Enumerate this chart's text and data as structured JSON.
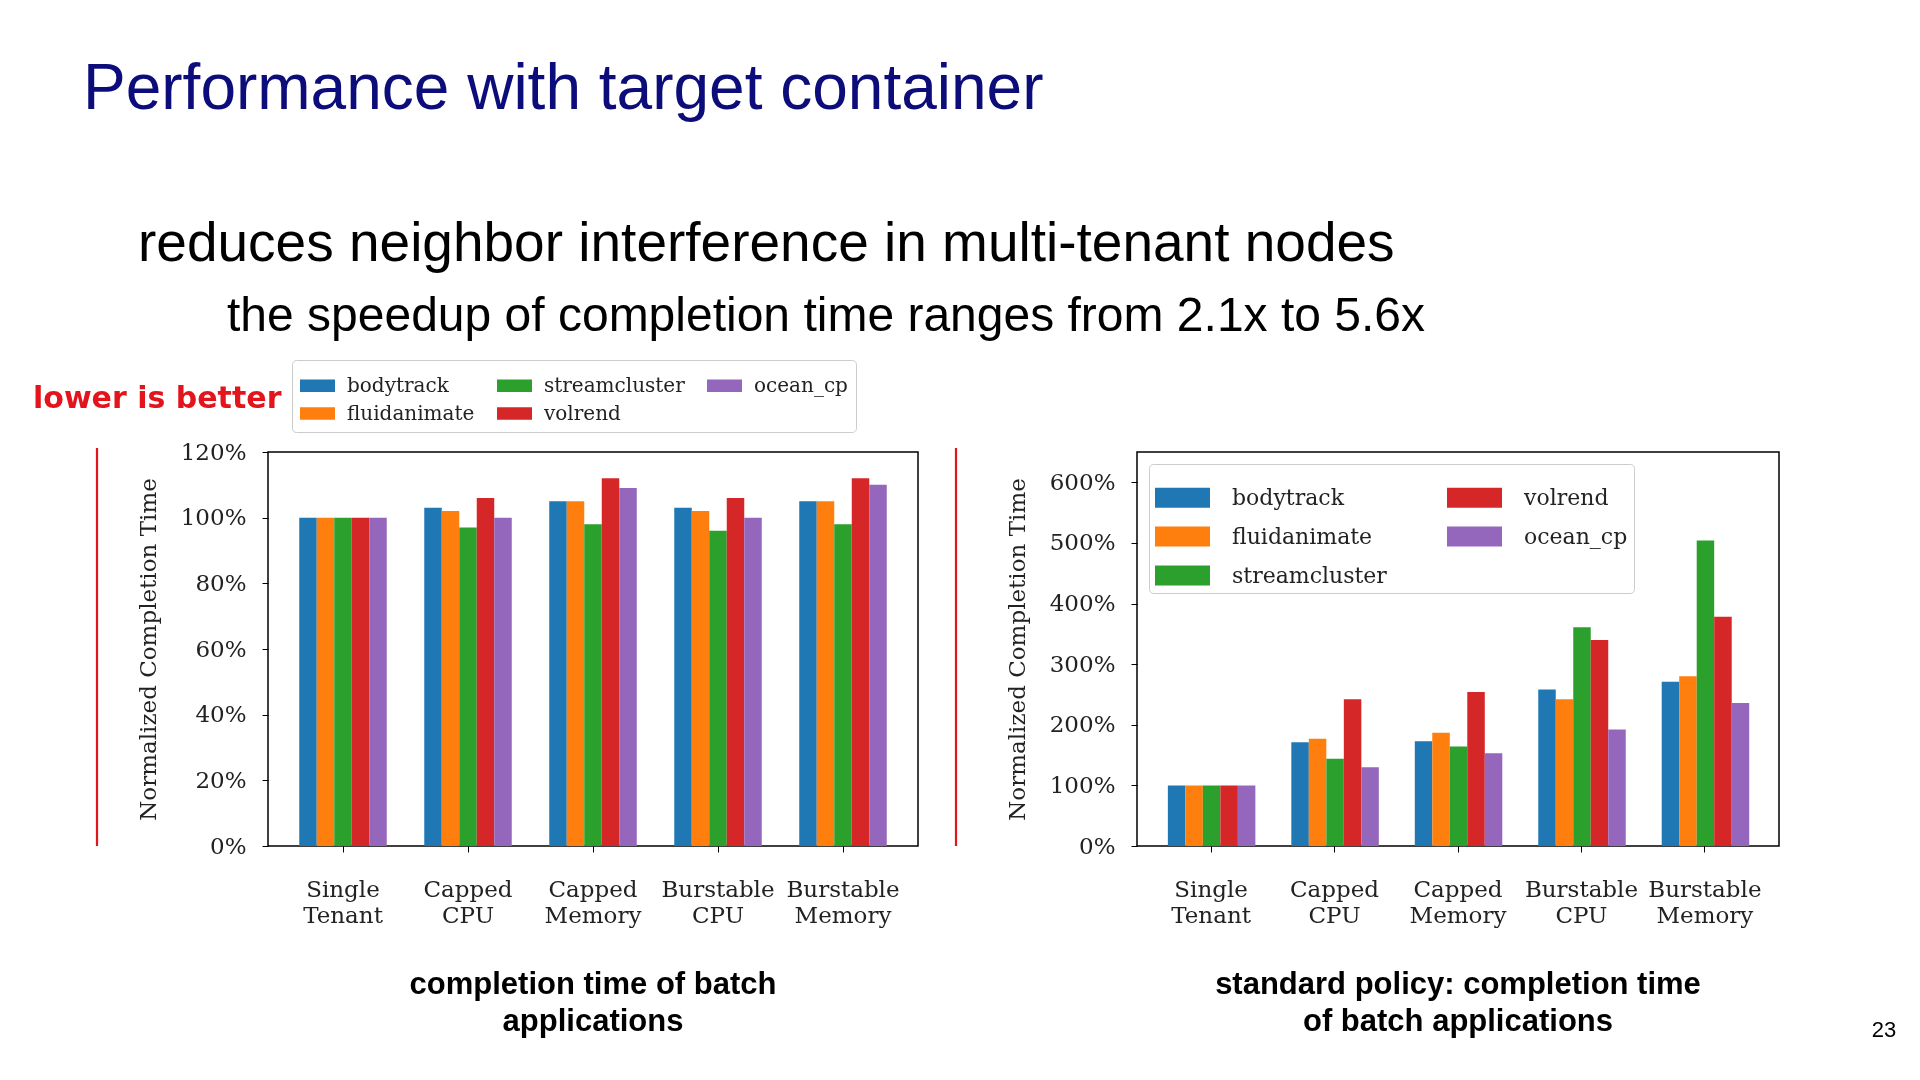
{
  "chart_data": [
    {
      "type": "other",
      "title": "Performance with target container",
      "annotations": [
        "reduces neighbor interference in multi-tenant nodes",
        "the speedup of completion time ranges from 2.1x to 5.6x",
        "lower is better"
      ]
    },
    {
      "type": "bar",
      "title": "completion time of batch applications",
      "ylabel": "Normalized Completion Time",
      "categories": [
        "Single Tenant",
        "Capped CPU",
        "Capped Memory",
        "Burstable CPU",
        "Burstable Memory"
      ],
      "series": [
        {
          "name": "bodytrack",
          "color": "#1f77b4",
          "values": [
            100,
            103,
            105,
            103,
            105
          ]
        },
        {
          "name": "fluidanimate",
          "color": "#ff7f0e",
          "values": [
            100,
            102,
            105,
            102,
            105
          ]
        },
        {
          "name": "streamcluster",
          "color": "#2ca02c",
          "values": [
            100,
            97,
            98,
            96,
            98
          ]
        },
        {
          "name": "volrend",
          "color": "#d62728",
          "values": [
            100,
            106,
            112,
            106,
            112
          ]
        },
        {
          "name": "ocean_cp",
          "color": "#9467bd",
          "values": [
            100,
            100,
            109,
            100,
            110
          ]
        }
      ],
      "ylim": [
        0,
        120
      ],
      "yticks": [
        {
          "value": 0,
          "label": "0%"
        },
        {
          "value": 20,
          "label": "20%"
        },
        {
          "value": 40,
          "label": "40%"
        },
        {
          "value": 60,
          "label": "60%"
        },
        {
          "value": 80,
          "label": "80%"
        },
        {
          "value": 100,
          "label": "100%"
        },
        {
          "value": 120,
          "label": "120%"
        }
      ],
      "legend": "top"
    },
    {
      "type": "bar",
      "title": "standard policy: completion time of batch applications",
      "ylabel": "Normalized Completion Time",
      "categories": [
        "Single Tenant",
        "Capped CPU",
        "Capped Memory",
        "Burstable CPU",
        "Burstable Memory"
      ],
      "series": [
        {
          "name": "bodytrack",
          "color": "#1f77b4",
          "values": [
            100,
            171,
            173,
            258,
            271
          ]
        },
        {
          "name": "fluidanimate",
          "color": "#ff7f0e",
          "values": [
            100,
            177,
            187,
            242,
            280
          ]
        },
        {
          "name": "streamcluster",
          "color": "#2ca02c",
          "values": [
            100,
            144,
            164,
            361,
            504
          ]
        },
        {
          "name": "volrend",
          "color": "#d62728",
          "values": [
            100,
            242,
            254,
            340,
            378
          ]
        },
        {
          "name": "ocean_cp",
          "color": "#9467bd",
          "values": [
            100,
            130,
            153,
            192,
            236
          ]
        }
      ],
      "ylim": [
        0,
        650
      ],
      "yticks": [
        {
          "value": 0,
          "label": "0%"
        },
        {
          "value": 100,
          "label": "100%"
        },
        {
          "value": 200,
          "label": "200%"
        },
        {
          "value": 300,
          "label": "300%"
        },
        {
          "value": 400,
          "label": "400%"
        },
        {
          "value": 500,
          "label": "500%"
        },
        {
          "value": 600,
          "label": "600%"
        }
      ],
      "legend": "top left",
      "annotations": [
        "23"
      ]
    }
  ]
}
